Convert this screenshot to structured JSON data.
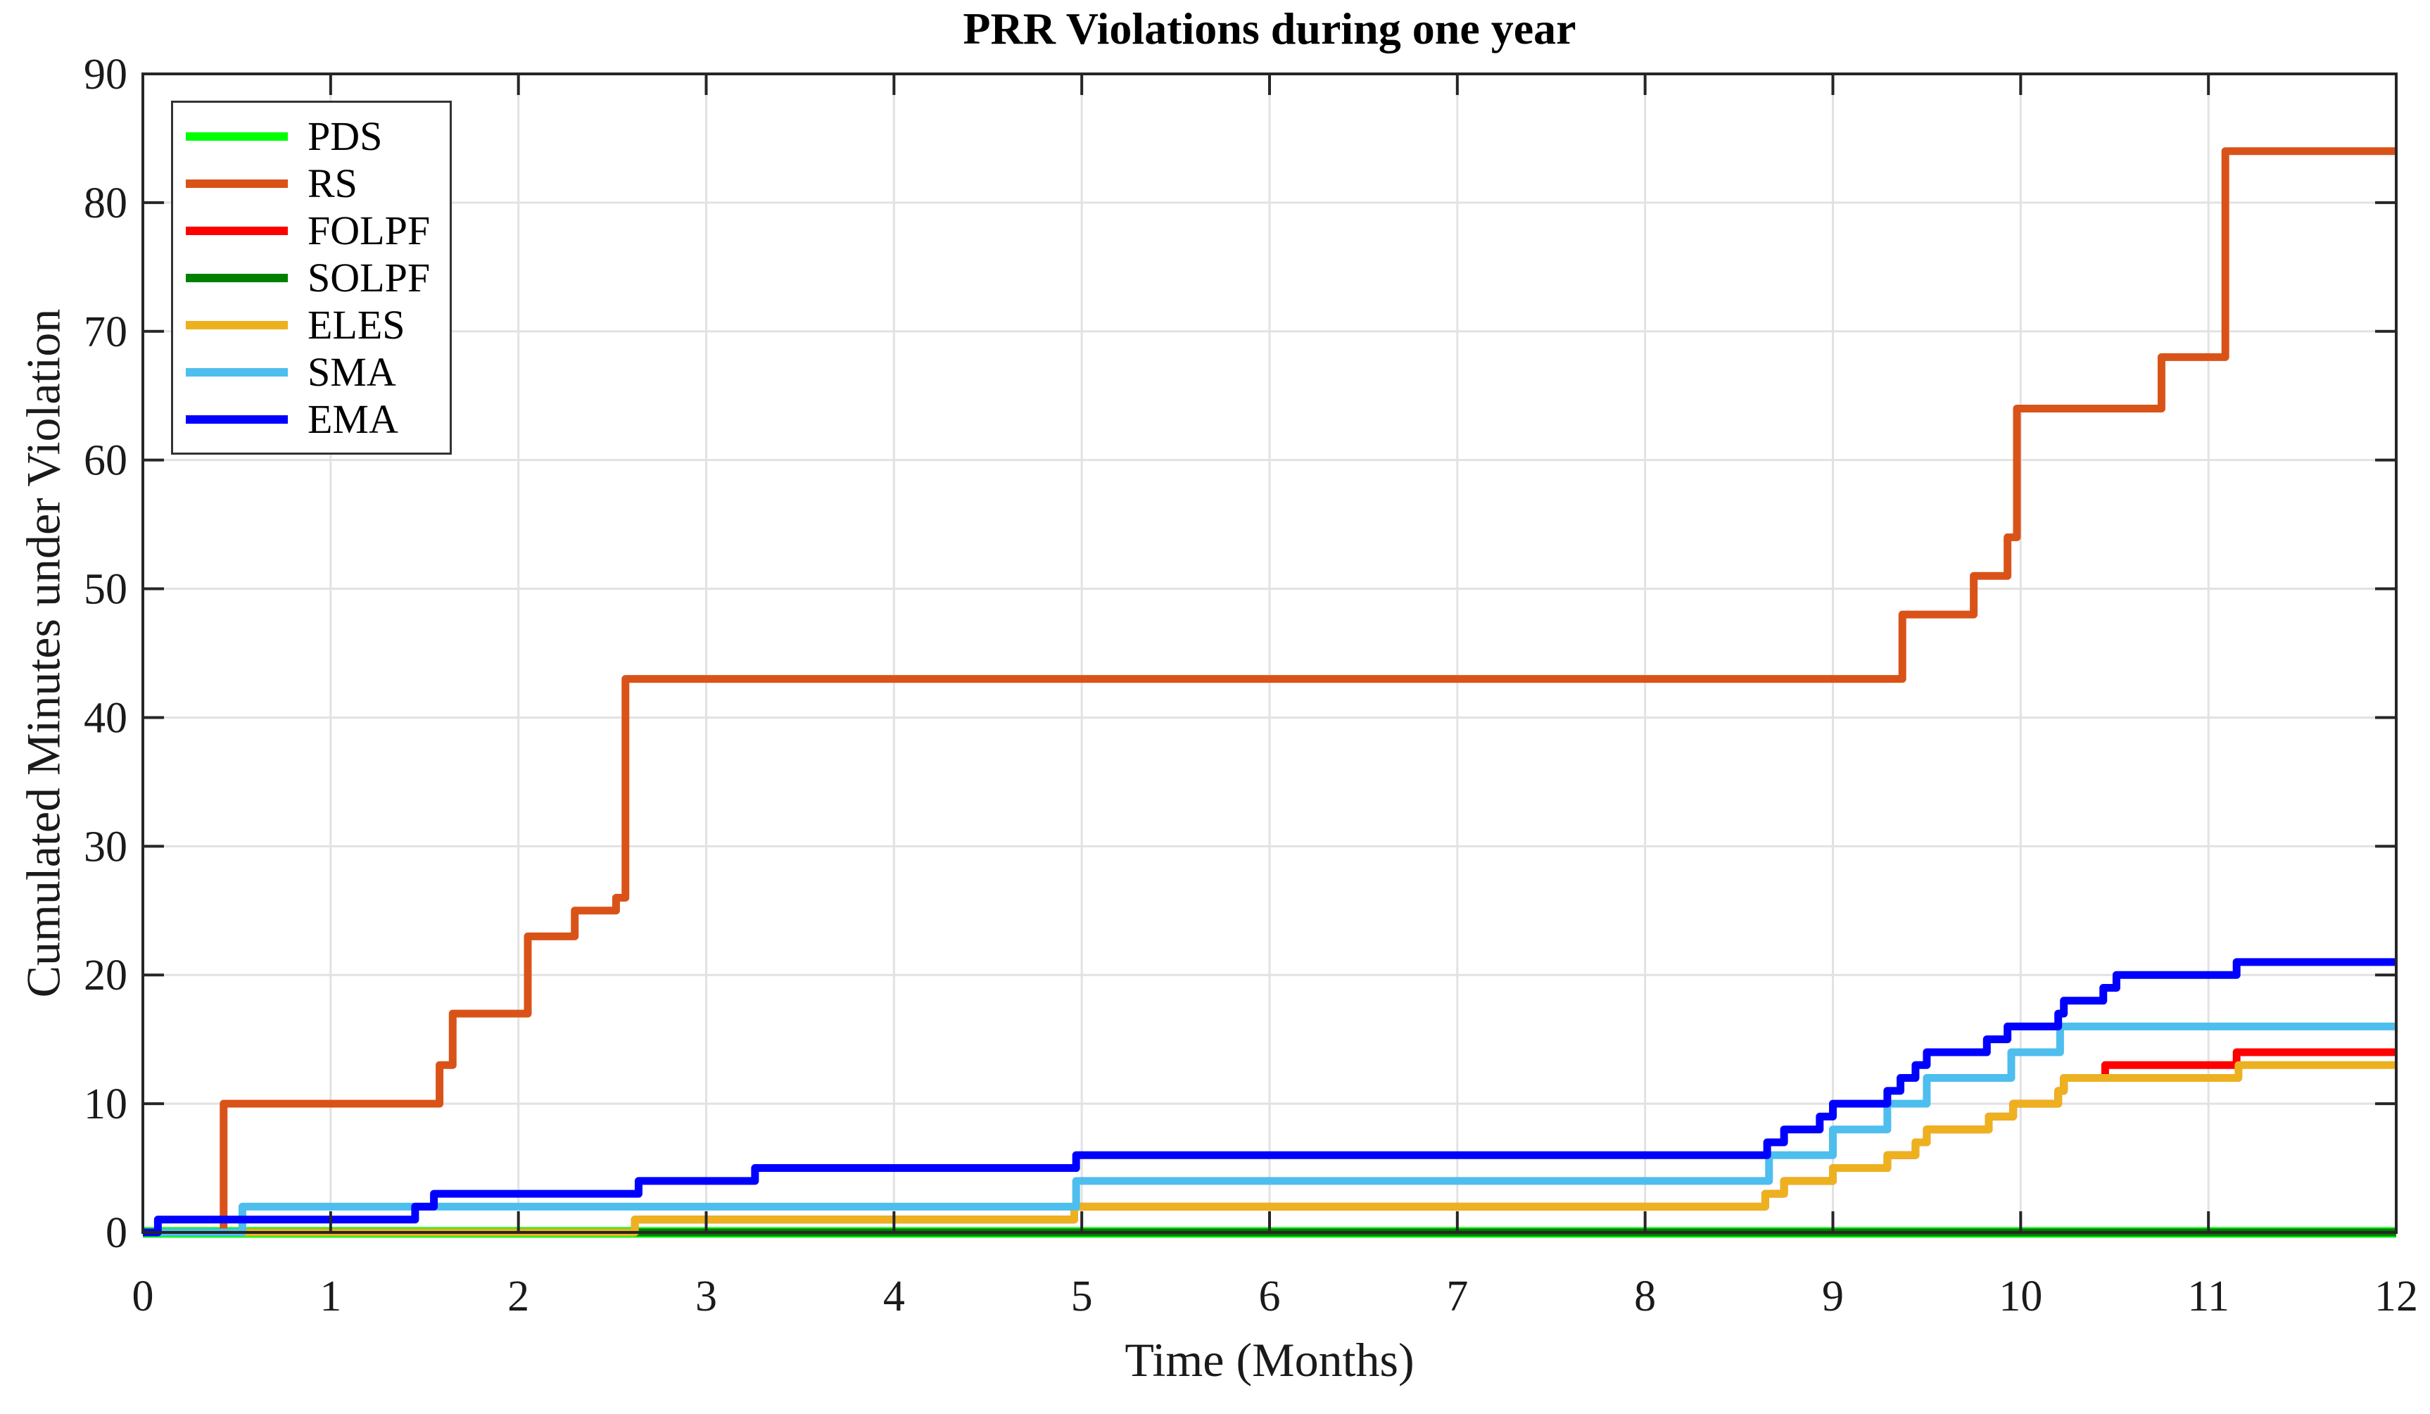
{
  "title": "PRR Violations during one year",
  "axes": {
    "xlabel": "Time (Months)",
    "ylabel": "Cumulated Minutes under Violation"
  },
  "legend": {
    "position": "top-left",
    "items": [
      {
        "label": "PDS",
        "color": "#00FF00"
      },
      {
        "label": "RS",
        "color": "#D95319"
      },
      {
        "label": "FOLPF",
        "color": "#FF0000"
      },
      {
        "label": "SOLPF",
        "color": "#008000"
      },
      {
        "label": "ELES",
        "color": "#EDB120"
      },
      {
        "label": "SMA",
        "color": "#4DBEEE"
      },
      {
        "label": "EMA",
        "color": "#0000FF"
      }
    ]
  },
  "chart_data": {
    "type": "line",
    "line_style": "step-post",
    "title": "PRR Violations during one year",
    "xlabel": "Time (Months)",
    "ylabel": "Cumulated Minutes under Violation",
    "xlim": [
      0,
      12
    ],
    "ylim": [
      0,
      90
    ],
    "xticks": [
      0,
      1,
      2,
      3,
      4,
      5,
      6,
      7,
      8,
      9,
      10,
      11,
      12
    ],
    "yticks": [
      0,
      10,
      20,
      30,
      40,
      50,
      60,
      70,
      80,
      90
    ],
    "grid": true,
    "legend_position": "top-left",
    "series": [
      {
        "name": "PDS",
        "color": "#00FF00",
        "final_value": 0,
        "points": [
          [
            0,
            0
          ]
        ]
      },
      {
        "name": "RS",
        "color": "#D95319",
        "final_value": 84,
        "points": [
          [
            0,
            0
          ],
          [
            0.43,
            10
          ],
          [
            1.58,
            13
          ],
          [
            1.65,
            17
          ],
          [
            2.05,
            23
          ],
          [
            2.3,
            25
          ],
          [
            2.52,
            26
          ],
          [
            2.57,
            43
          ],
          [
            9.37,
            48
          ],
          [
            9.75,
            51
          ],
          [
            9.93,
            54
          ],
          [
            9.98,
            64
          ],
          [
            10.75,
            68
          ],
          [
            11.09,
            84
          ]
        ]
      },
      {
        "name": "FOLPF",
        "color": "#FF0000",
        "final_value": 14,
        "points": [
          [
            0,
            0
          ],
          [
            2.62,
            1
          ],
          [
            4.96,
            2
          ],
          [
            8.64,
            3
          ],
          [
            8.74,
            4
          ],
          [
            9.0,
            5
          ],
          [
            9.29,
            6
          ],
          [
            9.44,
            7
          ],
          [
            9.5,
            8
          ],
          [
            9.83,
            9
          ],
          [
            9.96,
            10
          ],
          [
            10.2,
            11
          ],
          [
            10.23,
            12
          ],
          [
            10.45,
            13
          ],
          [
            11.15,
            14
          ]
        ]
      },
      {
        "name": "SOLPF",
        "color": "#008000",
        "final_value": 0,
        "points": [
          [
            0,
            0
          ]
        ]
      },
      {
        "name": "ELES",
        "color": "#EDB120",
        "final_value": 13,
        "points": [
          [
            0,
            0
          ],
          [
            2.62,
            1
          ],
          [
            4.96,
            2
          ],
          [
            8.64,
            3
          ],
          [
            8.74,
            4
          ],
          [
            9.0,
            5
          ],
          [
            9.29,
            6
          ],
          [
            9.44,
            7
          ],
          [
            9.5,
            8
          ],
          [
            9.83,
            9
          ],
          [
            9.96,
            10
          ],
          [
            10.2,
            11
          ],
          [
            10.23,
            12
          ],
          [
            11.16,
            13
          ]
        ]
      },
      {
        "name": "SMA",
        "color": "#4DBEEE",
        "final_value": 16,
        "points": [
          [
            0,
            0
          ],
          [
            0.53,
            2
          ],
          [
            4.97,
            4
          ],
          [
            8.66,
            6
          ],
          [
            9.0,
            8
          ],
          [
            9.29,
            10
          ],
          [
            9.5,
            12
          ],
          [
            9.95,
            14
          ],
          [
            10.21,
            16
          ]
        ]
      },
      {
        "name": "EMA",
        "color": "#0000FF",
        "final_value": 21,
        "points": [
          [
            0,
            0
          ],
          [
            0.08,
            1
          ],
          [
            1.45,
            2
          ],
          [
            1.55,
            3
          ],
          [
            2.64,
            4
          ],
          [
            3.26,
            5
          ],
          [
            4.97,
            6
          ],
          [
            8.65,
            7
          ],
          [
            8.74,
            8
          ],
          [
            8.93,
            9
          ],
          [
            9.0,
            10
          ],
          [
            9.29,
            11
          ],
          [
            9.36,
            12
          ],
          [
            9.44,
            13
          ],
          [
            9.5,
            14
          ],
          [
            9.82,
            15
          ],
          [
            9.93,
            16
          ],
          [
            10.2,
            17
          ],
          [
            10.23,
            18
          ],
          [
            10.44,
            19
          ],
          [
            10.51,
            20
          ],
          [
            11.15,
            21
          ]
        ]
      }
    ]
  }
}
